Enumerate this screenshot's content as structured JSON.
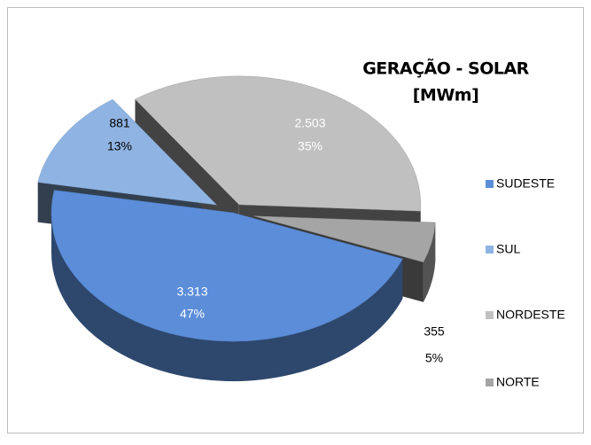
{
  "chart_data": {
    "type": "pie3d",
    "title": "GERAÇÃO - SOLAR",
    "subtitle": "[MWm]",
    "categories": [
      "SUDESTE",
      "SUL",
      "NORDESTE",
      "NORTE"
    ],
    "values": [
      3313,
      881,
      2503,
      355
    ],
    "value_labels": [
      "3.313",
      "881",
      "2.503",
      "355"
    ],
    "percents": [
      47,
      13,
      35,
      5
    ],
    "percent_labels": [
      "47%",
      "13%",
      "35%",
      "5%"
    ],
    "colors": [
      "#5b8dd9",
      "#8fb4e3",
      "#c0c0c0",
      "#a5a5a5"
    ],
    "legend": "right"
  }
}
